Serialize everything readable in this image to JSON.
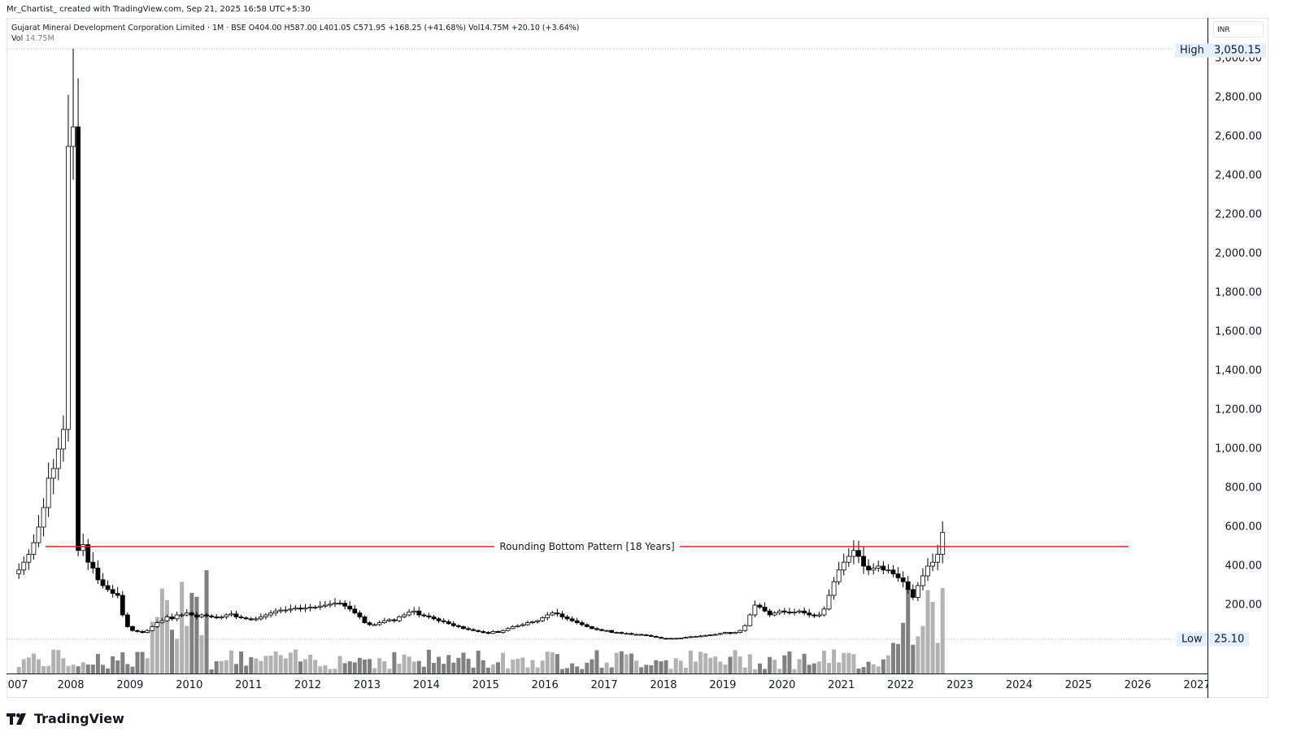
{
  "header": {
    "credit": "Mr_Chartist_ created with TradingView.com, Sep 21, 2025 16:58 UTC+5:30",
    "symbol_line": "Gujarat Mineral Development Corporation Limited · 1M · BSE  O404.00  H587.00  L401.05  C571.95  +168.25 (+41.68%)  Vol14.75M  +20.10 (+3.64%)",
    "vol_label": "Vol",
    "vol_value": "14.75M"
  },
  "price_axis": {
    "currency": "INR",
    "high_label": "High",
    "high_value": "3,050.15",
    "low_label": "Low",
    "low_value": "25.10",
    "ticks": [
      "3,000.00",
      "2,800.00",
      "2,600.00",
      "2,400.00",
      "2,200.00",
      "2,000.00",
      "1,800.00",
      "1,600.00",
      "1,400.00",
      "1,200.00",
      "1,000.00",
      "800.00",
      "600.00",
      "400.00",
      "200.00"
    ]
  },
  "time_axis": {
    "years": [
      "007",
      "2008",
      "2009",
      "2010",
      "2011",
      "2012",
      "2013",
      "2014",
      "2015",
      "2016",
      "2017",
      "2018",
      "2019",
      "2020",
      "2021",
      "2022",
      "2023",
      "2024",
      "2025",
      "2026",
      "2027"
    ]
  },
  "annotation": {
    "label": "Rounding Bottom Pattern [18 Years]",
    "price": 500,
    "color": "#e41e26"
  },
  "branding": {
    "logo_text": "TradingView"
  },
  "colors": {
    "up_body": "#ffffff",
    "down_body": "#000000",
    "wick": "#000000",
    "vol_up": "#b2b2b2",
    "vol_down": "#808080",
    "pattern_line": "#e41e26"
  },
  "chart_data": {
    "type": "candlestick",
    "title": "Gujarat Mineral Development Corporation Limited · 1M · BSE",
    "xlabel": "",
    "ylabel": "INR",
    "ylim": [
      0,
      3100
    ],
    "annotations": [
      {
        "type": "hline",
        "y": 500,
        "label": "Rounding Bottom Pattern [18 Years]"
      }
    ],
    "high": 3050.15,
    "low": 25.1,
    "last_bar": {
      "open": 404.0,
      "high": 587.0,
      "low": 401.05,
      "close": 571.95,
      "change": 168.25,
      "change_pct": 41.68,
      "volume": "14.75M"
    },
    "series_approx_closes": {
      "2007": [
        380,
        420,
        460,
        520,
        600,
        700,
        850,
        900,
        1000,
        1100,
        2550,
        2650
      ],
      "2008": [
        480,
        510,
        420,
        390,
        330,
        300,
        280,
        260,
        250,
        150,
        90,
        70
      ],
      "2009": [
        65,
        60,
        70,
        90,
        110,
        120,
        140,
        130,
        150,
        150,
        160,
        150
      ],
      "2010": [
        140,
        150,
        145,
        140,
        135,
        140,
        150,
        155,
        140,
        135,
        130,
        125
      ],
      "2011": [
        130,
        140,
        150,
        160,
        170,
        175,
        175,
        180,
        185,
        180,
        185,
        190
      ],
      "2012": [
        190,
        195,
        200,
        205,
        210,
        210,
        195,
        180,
        160,
        140,
        110,
        100
      ],
      "2013": [
        100,
        110,
        120,
        125,
        120,
        140,
        150,
        165,
        170,
        150,
        145,
        140
      ],
      "2014": [
        130,
        120,
        115,
        105,
        95,
        90,
        80,
        75,
        70,
        65,
        60,
        55
      ],
      "2015": [
        65,
        60,
        70,
        80,
        90,
        95,
        100,
        110,
        115,
        120,
        135,
        150
      ],
      "2016": [
        160,
        155,
        140,
        130,
        120,
        110,
        100,
        90,
        80,
        75,
        70,
        70
      ],
      "2017": [
        60,
        60,
        55,
        55,
        50,
        50,
        48,
        45,
        40,
        35,
        30,
        28
      ],
      "2018": [
        30,
        30,
        32,
        35,
        38,
        40,
        42,
        45,
        48,
        50,
        55,
        60
      ],
      "2019": [
        55,
        60,
        70,
        95,
        150,
        200,
        190,
        170,
        150,
        160,
        170,
        165
      ],
      "2020": [
        160,
        165,
        170,
        160,
        150,
        145,
        150,
        180,
        250,
        320,
        380,
        420
      ],
      "2021": [
        450,
        480,
        450,
        400,
        380,
        390,
        400,
        380,
        380,
        360,
        340,
        320
      ],
      "2022": [
        280,
        240,
        300,
        350,
        400,
        420,
        460,
        572
      ]
    },
    "volume_note": "Volume histogram shown at bottom, peaks around mid-2009 and 2022-2024"
  }
}
